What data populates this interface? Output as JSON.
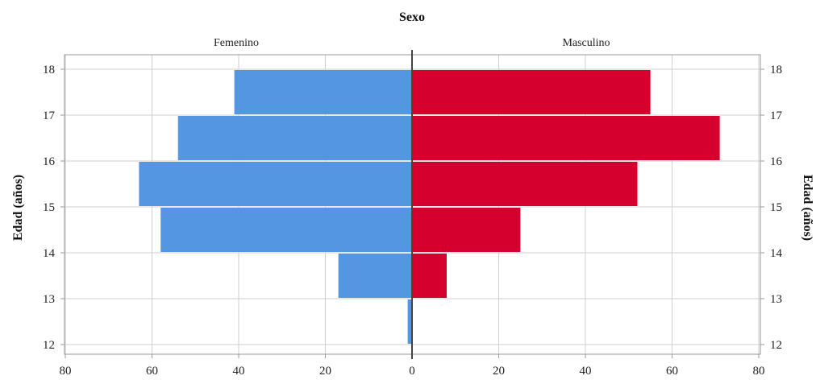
{
  "chart_data": {
    "type": "bar",
    "orientation": "horizontal",
    "style": "population-pyramid",
    "title": "Sexo",
    "ylabel": "Edad (años)",
    "categories": [
      "12",
      "13",
      "14",
      "15",
      "16",
      "17",
      "18"
    ],
    "series": [
      {
        "name": "Femenino",
        "values": [
          1,
          17,
          58,
          63,
          54,
          41,
          0
        ],
        "color": "#5596e3"
      },
      {
        "name": "Masculino",
        "values": [
          0,
          8,
          25,
          52,
          71,
          55,
          0
        ],
        "color": "#d6002f"
      }
    ],
    "xlim": [
      0,
      80
    ],
    "x_ticks": [
      "80",
      "60",
      "40",
      "20",
      "0",
      "20",
      "40",
      "60",
      "80"
    ],
    "grid": true,
    "y_tick_labels_both_sides": true,
    "colors": {
      "femenino": "#5596e3",
      "masculino": "#d6002f",
      "grid": "#cfcfcf",
      "frame": "#9a9a9a",
      "center_axis": "#444444"
    }
  }
}
